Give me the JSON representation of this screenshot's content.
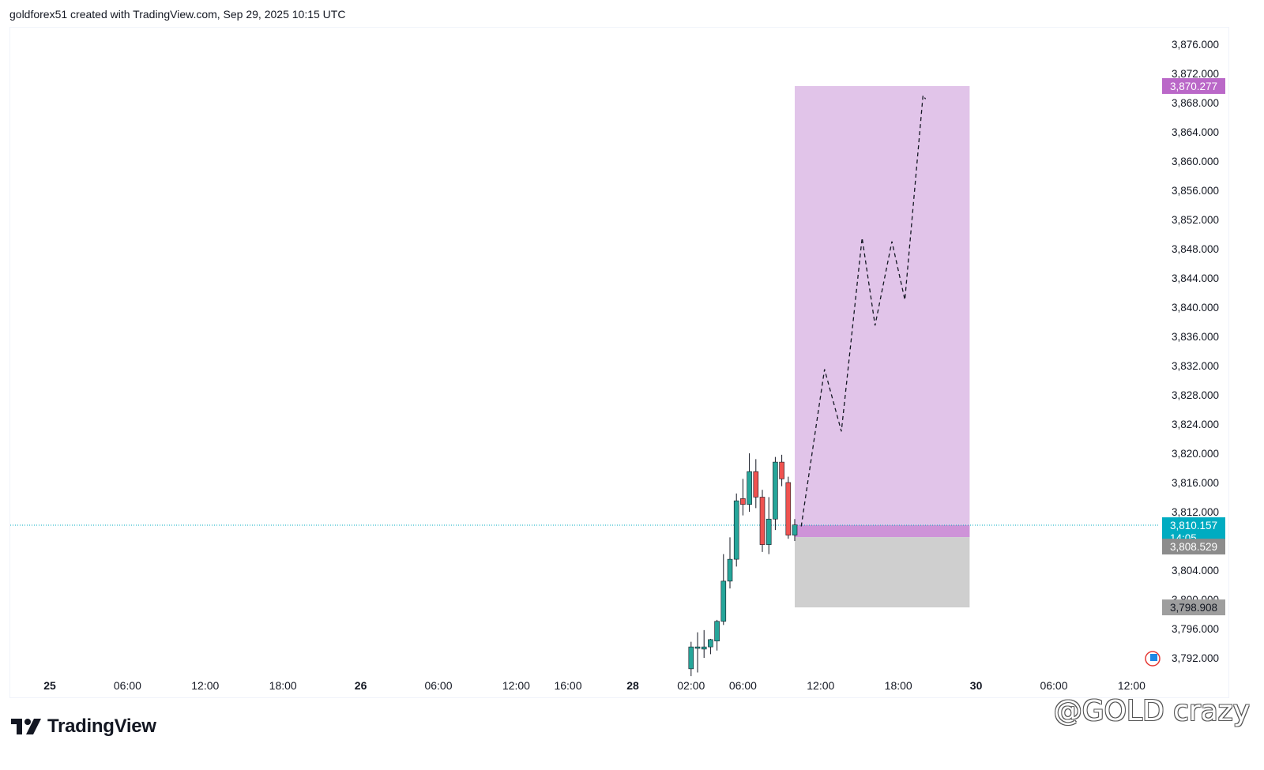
{
  "header": {
    "text": "goldforex51 created with TradingView.com, Sep 29, 2025 10:15 UTC"
  },
  "footer": {
    "brand": "TradingView",
    "watermark": "@GOLD crazy"
  },
  "colors": {
    "bull": "#26a69a",
    "bear": "#ef5350",
    "target_zone": "#e1c4e9",
    "target_label": "#ba68c8",
    "entry_band": "#ce93d8",
    "stop_zone": "#cfcfcf",
    "stop_label": "#9e9e9e",
    "current_price": "#00acc1",
    "entry_label": "#8c8c8c"
  },
  "chart_data": {
    "type": "candlestick",
    "symbol_timeframe": "1h",
    "y_axis": {
      "min": 3788,
      "max": 3878,
      "ticks": [
        "3,876.000",
        "3,872.000",
        "3,868.000",
        "3,864.000",
        "3,860.000",
        "3,856.000",
        "3,852.000",
        "3,848.000",
        "3,844.000",
        "3,840.000",
        "3,836.000",
        "3,832.000",
        "3,828.000",
        "3,824.000",
        "3,820.000",
        "3,816.000",
        "3,812.000",
        "3,804.000",
        "3,800.000",
        "3,796.000",
        "3,792.000"
      ],
      "tick_values": [
        3876,
        3872,
        3868,
        3864,
        3860,
        3856,
        3852,
        3848,
        3844,
        3840,
        3836,
        3832,
        3828,
        3824,
        3820,
        3816,
        3812,
        3804,
        3800,
        3796,
        3792
      ]
    },
    "x_axis": {
      "labels": [
        {
          "text": "25",
          "bold": true,
          "t": 0
        },
        {
          "text": "06:00",
          "bold": false,
          "t": 6
        },
        {
          "text": "12:00",
          "bold": false,
          "t": 12
        },
        {
          "text": "18:00",
          "bold": false,
          "t": 18
        },
        {
          "text": "26",
          "bold": true,
          "t": 24
        },
        {
          "text": "06:00",
          "bold": false,
          "t": 30
        },
        {
          "text": "12:00",
          "bold": false,
          "t": 36
        },
        {
          "text": "16:00",
          "bold": false,
          "t": 40
        },
        {
          "text": "28",
          "bold": true,
          "t": 45
        },
        {
          "text": "02:00",
          "bold": false,
          "t": 49.5
        },
        {
          "text": "06:00",
          "bold": false,
          "t": 53.5
        },
        {
          "text": "12:00",
          "bold": false,
          "t": 59.5
        },
        {
          "text": "18:00",
          "bold": false,
          "t": 65.5
        },
        {
          "text": "30",
          "bold": true,
          "t": 71.5
        },
        {
          "text": "06:00",
          "bold": false,
          "t": 77.5
        },
        {
          "text": "12:00",
          "bold": false,
          "t": 83.5
        }
      ]
    },
    "candles": [
      {
        "t": 49.5,
        "o": 3790.5,
        "h": 3794.2,
        "l": 3789.5,
        "c": 3793.5
      },
      {
        "t": 50.0,
        "o": 3793.3,
        "h": 3795.5,
        "l": 3790.0,
        "c": 3793.5
      },
      {
        "t": 50.5,
        "o": 3793.2,
        "h": 3795.8,
        "l": 3792.0,
        "c": 3793.5
      },
      {
        "t": 51.0,
        "o": 3793.5,
        "h": 3794.6,
        "l": 3792.5,
        "c": 3794.5
      },
      {
        "t": 51.5,
        "o": 3794.3,
        "h": 3797.2,
        "l": 3793.0,
        "c": 3797.0
      },
      {
        "t": 52.0,
        "o": 3797.0,
        "h": 3806.2,
        "l": 3796.5,
        "c": 3802.5
      },
      {
        "t": 52.5,
        "o": 3802.5,
        "h": 3808.5,
        "l": 3801.5,
        "c": 3805.5
      },
      {
        "t": 53.0,
        "o": 3805.5,
        "h": 3814.5,
        "l": 3804.5,
        "c": 3813.5
      },
      {
        "t": 53.5,
        "o": 3813.8,
        "h": 3816.5,
        "l": 3811.5,
        "c": 3813.0
      },
      {
        "t": 54.0,
        "o": 3813.0,
        "h": 3820.0,
        "l": 3812.0,
        "c": 3817.5
      },
      {
        "t": 54.5,
        "o": 3817.5,
        "h": 3819.2,
        "l": 3812.5,
        "c": 3814.0
      },
      {
        "t": 55.0,
        "o": 3814.0,
        "h": 3815.0,
        "l": 3806.5,
        "c": 3807.5
      },
      {
        "t": 55.5,
        "o": 3807.5,
        "h": 3814.0,
        "l": 3806.2,
        "c": 3811.0
      },
      {
        "t": 56.0,
        "o": 3811.0,
        "h": 3819.5,
        "l": 3809.5,
        "c": 3818.8
      },
      {
        "t": 56.5,
        "o": 3818.8,
        "h": 3819.8,
        "l": 3815.5,
        "c": 3816.5
      },
      {
        "t": 57.0,
        "o": 3816.0,
        "h": 3816.8,
        "l": 3808.3,
        "c": 3808.8
      },
      {
        "t": 57.5,
        "o": 3808.8,
        "h": 3811.0,
        "l": 3808.0,
        "c": 3810.2
      }
    ],
    "risk_reward": {
      "type": "long_position",
      "t_start": 57.5,
      "t_end": 71.0,
      "target": 3870.277,
      "entry": 3808.529,
      "stop": 3798.908
    },
    "forecast_path": [
      {
        "t": 58.0,
        "v": 3810.0
      },
      {
        "t": 59.8,
        "v": 3831.5
      },
      {
        "t": 61.1,
        "v": 3823.0
      },
      {
        "t": 62.7,
        "v": 3849.5
      },
      {
        "t": 63.7,
        "v": 3837.5
      },
      {
        "t": 65.0,
        "v": 3849.0
      },
      {
        "t": 66.0,
        "v": 3841.0
      },
      {
        "t": 67.4,
        "v": 3869.0
      },
      {
        "t": 67.6,
        "v": 3868.5
      }
    ],
    "price_labels": {
      "target": {
        "text": "3,870.277",
        "value": 3870.277
      },
      "current": {
        "text": "3,810.157",
        "countdown": "14:05",
        "value": 3810.157
      },
      "entry": {
        "text": "3,808.529",
        "value": 3808.529
      },
      "stop": {
        "text": "3,798.908",
        "value": 3798.908
      }
    }
  }
}
